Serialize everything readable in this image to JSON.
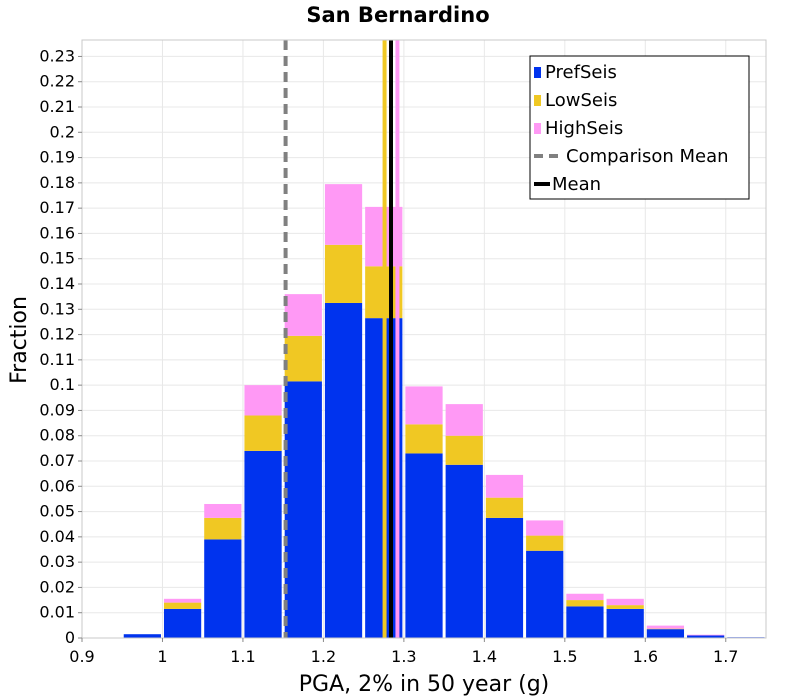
{
  "chart_data": {
    "type": "bar",
    "title": "San Bernardino",
    "xlabel": "PGA, 2% in 50 year (g)",
    "ylabel": "Fraction",
    "xlim": [
      0.9,
      1.75
    ],
    "ylim": [
      0,
      0.2365
    ],
    "x_ticks": [
      "0.9",
      "1",
      "1.1",
      "1.2",
      "1.3",
      "1.4",
      "1.5",
      "1.6",
      "1.7"
    ],
    "x_tick_values": [
      0.9,
      1.0,
      1.1,
      1.2,
      1.3,
      1.4,
      1.5,
      1.6,
      1.7
    ],
    "y_ticks": [
      "0",
      "0.01",
      "0.02",
      "0.03",
      "0.04",
      "0.05",
      "0.06",
      "0.07",
      "0.08",
      "0.09",
      "0.1",
      "0.11",
      "0.12",
      "0.13",
      "0.14",
      "0.15",
      "0.16",
      "0.17",
      "0.18",
      "0.19",
      "0.2",
      "0.21",
      "0.22",
      "0.23"
    ],
    "y_tick_values": [
      0,
      0.01,
      0.02,
      0.03,
      0.04,
      0.05,
      0.06,
      0.07,
      0.08,
      0.09,
      0.1,
      0.11,
      0.12,
      0.13,
      0.14,
      0.15,
      0.16,
      0.17,
      0.18,
      0.19,
      0.2,
      0.21,
      0.22,
      0.23
    ],
    "grid": true,
    "legend_position": "top-right",
    "bin_width": 0.05,
    "bin_centers": [
      0.925,
      0.975,
      1.025,
      1.075,
      1.125,
      1.175,
      1.225,
      1.275,
      1.325,
      1.375,
      1.425,
      1.475,
      1.525,
      1.575,
      1.625,
      1.675,
      1.725
    ],
    "stacking": "stacked",
    "series": [
      {
        "name": "PrefSeis",
        "color": "#0033ee",
        "values": [
          0.0,
          0.0015,
          0.0115,
          0.039,
          0.074,
          0.1015,
          0.1325,
          0.1265,
          0.073,
          0.0685,
          0.0475,
          0.0345,
          0.0125,
          0.0115,
          0.0035,
          0.001,
          0.0003
        ]
      },
      {
        "name": "LowSeis",
        "color": "#f0c823",
        "values": [
          0.0,
          0.0,
          0.0025,
          0.0085,
          0.014,
          0.018,
          0.023,
          0.0205,
          0.0115,
          0.0115,
          0.008,
          0.006,
          0.0025,
          0.0015,
          0.0002,
          0.0,
          0.0
        ]
      },
      {
        "name": "HighSeis",
        "color": "#ff99f5",
        "values": [
          0.0,
          0.0,
          0.0015,
          0.0055,
          0.012,
          0.0165,
          0.024,
          0.0235,
          0.015,
          0.0125,
          0.009,
          0.006,
          0.0025,
          0.0025,
          0.0012,
          0.0003,
          0.0
        ]
      }
    ],
    "lines": [
      {
        "name": "Comparison Mean",
        "x": 1.153,
        "color": "#808080",
        "style": "dashed"
      },
      {
        "name": "Mean",
        "x": 1.284,
        "color": "#000000",
        "style": "solid"
      },
      {
        "name": "LowSeis mean",
        "x": 1.276,
        "color": "#f0c823",
        "style": "solid"
      },
      {
        "name": "HighSeis mean",
        "x": 1.292,
        "color": "#ff99f5",
        "style": "solid"
      }
    ],
    "legend": [
      {
        "label": "PrefSeis",
        "kind": "box",
        "color": "#0033ee"
      },
      {
        "label": "LowSeis",
        "kind": "box",
        "color": "#f0c823"
      },
      {
        "label": "HighSeis",
        "kind": "box",
        "color": "#ff99f5"
      },
      {
        "label": "Comparison Mean",
        "kind": "dash",
        "color": "#808080"
      },
      {
        "label": "Mean",
        "kind": "line",
        "color": "#000000"
      }
    ]
  }
}
